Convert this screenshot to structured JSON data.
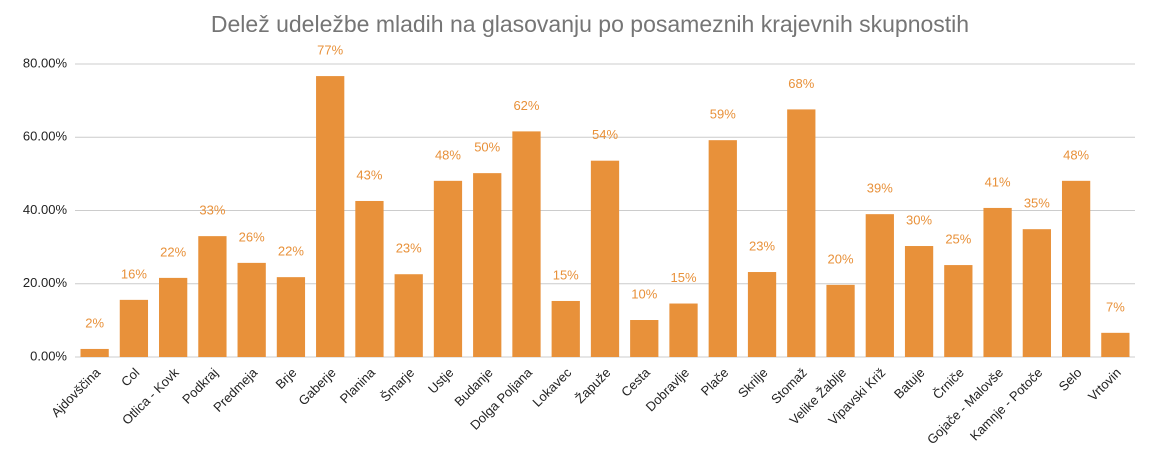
{
  "chart_data": {
    "type": "bar",
    "title": "Delež udeležbe mladih na glasovanju po posameznih krajevnih skupnostih",
    "categories": [
      "Ajdovščina",
      "Col",
      "Otlica - Kovk",
      "Podkraj",
      "Predmeja",
      "Brje",
      "Gaberje",
      "Planina",
      "Šmarje",
      "Ustje",
      "Budanje",
      "Dolga Poljana",
      "Lokavec",
      "Žapuže",
      "Cesta",
      "Dobravlje",
      "Plače",
      "Skrilje",
      "Stomaž",
      "Velike Žablje",
      "Vipavski Križ",
      "Batuje",
      "Črniče",
      "Gojače - Malovše",
      "Kamnje - Potoče",
      "Selo",
      "Vrtovin"
    ],
    "values": [
      2.2,
      15.6,
      21.6,
      33.0,
      25.7,
      21.8,
      76.7,
      42.6,
      22.6,
      48.1,
      50.2,
      61.6,
      15.3,
      53.6,
      10.1,
      14.6,
      59.2,
      23.2,
      67.6,
      19.7,
      39.0,
      30.3,
      25.1,
      40.7,
      34.9,
      48.1,
      6.6
    ],
    "value_labels": [
      "2%",
      "16%",
      "22%",
      "33%",
      "26%",
      "22%",
      "77%",
      "43%",
      "23%",
      "48%",
      "50%",
      "62%",
      "15%",
      "54%",
      "10%",
      "15%",
      "59%",
      "23%",
      "68%",
      "20%",
      "39%",
      "30%",
      "25%",
      "41%",
      "35%",
      "48%",
      "7%"
    ],
    "color": "#e8913a",
    "ylim": [
      0,
      80
    ],
    "yticks": [
      {
        "value": 0,
        "label": "0.00%"
      },
      {
        "value": 20,
        "label": "20.00%"
      },
      {
        "value": 40,
        "label": "40.00%"
      },
      {
        "value": 60,
        "label": "60.00%"
      },
      {
        "value": 80,
        "label": "80.00%"
      }
    ],
    "grid": true
  }
}
